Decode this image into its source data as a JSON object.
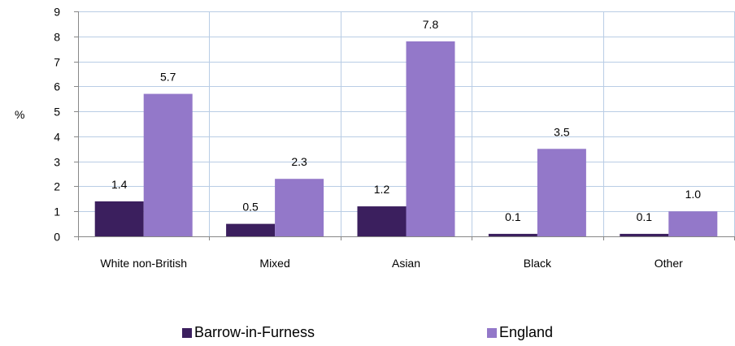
{
  "chart_data": {
    "type": "bar",
    "categories": [
      "White non-British",
      "Mixed",
      "Asian",
      "Black",
      "Other"
    ],
    "series": [
      {
        "name": "Barrow-in-Furness",
        "values": [
          1.4,
          0.5,
          1.2,
          0.1,
          0.1
        ],
        "labels": [
          "1.4",
          "0.5",
          "1.2",
          "0.1",
          "0.1"
        ],
        "color": "#3b1f5e"
      },
      {
        "name": "England",
        "values": [
          5.7,
          2.3,
          7.8,
          3.5,
          1.0
        ],
        "labels": [
          "5.7",
          "2.3",
          "7.8",
          "3.5",
          "1.0"
        ],
        "color": "#9378c9"
      }
    ],
    "ylabel": "%",
    "ylim": [
      0,
      9
    ],
    "yticks": [
      "0",
      "1",
      "2",
      "3",
      "4",
      "5",
      "6",
      "7",
      "8",
      "9"
    ],
    "grid": true,
    "grid_color": "#b9cde5",
    "legend_position": "bottom"
  }
}
